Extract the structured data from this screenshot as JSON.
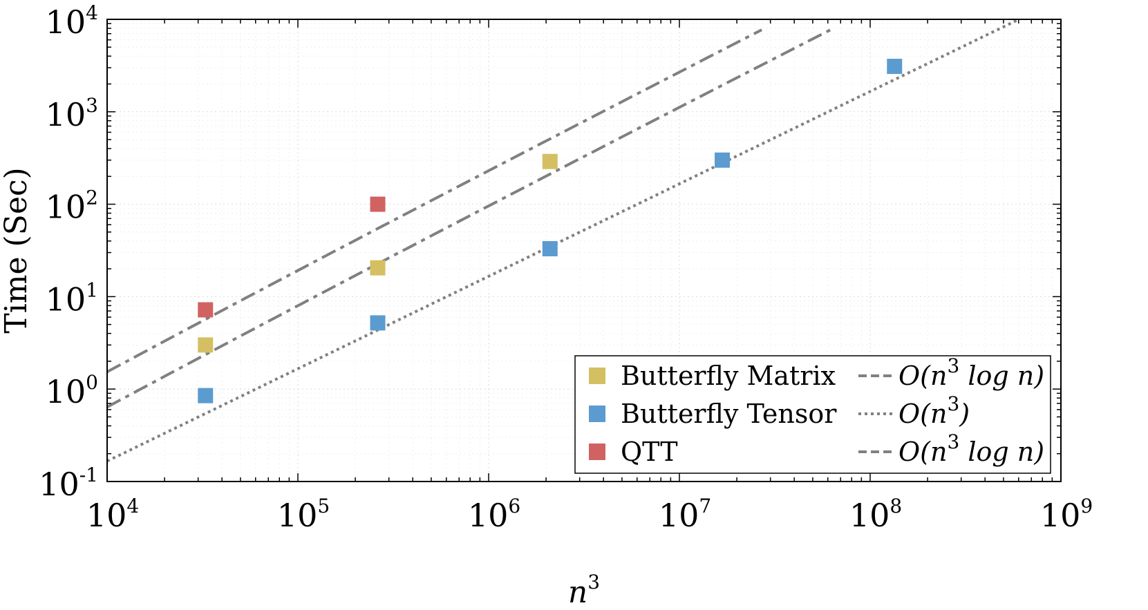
{
  "chart_data": {
    "type": "scatter",
    "xscale": "log",
    "yscale": "log",
    "xlim": [
      10000,
      1000000000
    ],
    "ylim": [
      0.1,
      10000
    ],
    "grid": true,
    "xlabel": {
      "base": "n",
      "exp": "3"
    },
    "ylabel": "Time (Sec)",
    "x_ticks": [
      {
        "value": 10000,
        "base": "10",
        "exp": "4"
      },
      {
        "value": 100000,
        "base": "10",
        "exp": "5"
      },
      {
        "value": 1000000,
        "base": "10",
        "exp": "6"
      },
      {
        "value": 10000000,
        "base": "10",
        "exp": "7"
      },
      {
        "value": 100000000,
        "base": "10",
        "exp": "8"
      },
      {
        "value": 1000000000,
        "base": "10",
        "exp": "9"
      }
    ],
    "y_ticks": [
      {
        "value": 0.1,
        "base": "10",
        "exp": "-1"
      },
      {
        "value": 1,
        "base": "10",
        "exp": "0"
      },
      {
        "value": 10,
        "base": "10",
        "exp": "1"
      },
      {
        "value": 100,
        "base": "10",
        "exp": "2"
      },
      {
        "value": 1000,
        "base": "10",
        "exp": "3"
      },
      {
        "value": 10000,
        "base": "10",
        "exp": "4"
      }
    ],
    "series": [
      {
        "name": "Butterfly Matrix",
        "color": "#d4bf62",
        "points": [
          [
            32768,
            3.0
          ],
          [
            262144,
            20.5
          ],
          [
            2097152,
            290
          ]
        ]
      },
      {
        "name": "Butterfly Tensor",
        "color": "#5b9bd0",
        "points": [
          [
            32768,
            0.85
          ],
          [
            262144,
            5.2
          ],
          [
            2097152,
            33
          ],
          [
            16777216,
            300
          ],
          [
            134217728,
            3100
          ]
        ]
      },
      {
        "name": "QTT",
        "color": "#d06262",
        "points": [
          [
            32768,
            7.2
          ],
          [
            262144,
            100
          ]
        ]
      }
    ],
    "reference_lines": [
      {
        "label": "O(n³ log n)",
        "style": "dashed",
        "color": "#808080",
        "x_range": [
          10000,
          27000000
        ],
        "scale": 5e-05
      },
      {
        "label": "O(n³)",
        "style": "dotted",
        "color": "#808080",
        "x_range": [
          10000,
          600000000
        ],
        "scale": 1.66e-05
      },
      {
        "label": "O(n³ log n)",
        "style": "dashed",
        "color": "#808080",
        "x_range": [
          10000,
          65000000
        ],
        "scale": 2.08e-05
      }
    ],
    "legend": {
      "position": "bottom-right",
      "items": [
        {
          "label": "Butterfly Matrix",
          "kind": "marker",
          "color": "#d4bf62"
        },
        {
          "label": "O(n³ log n)",
          "kind": "line",
          "style": "dashed",
          "color": "#808080",
          "base": "O(n",
          "exp": "3",
          "tail": " log n)"
        },
        {
          "label": "Butterfly Tensor",
          "kind": "marker",
          "color": "#5b9bd0"
        },
        {
          "label": "O(n³)",
          "kind": "line",
          "style": "dotted",
          "color": "#808080",
          "base": "O(n",
          "exp": "3",
          "tail": ")"
        },
        {
          "label": "QTT",
          "kind": "marker",
          "color": "#d06262"
        },
        {
          "label": "O(n³ log n)",
          "kind": "line",
          "style": "dashed",
          "color": "#808080",
          "base": "O(n",
          "exp": "3",
          "tail": " log n)"
        }
      ]
    }
  }
}
